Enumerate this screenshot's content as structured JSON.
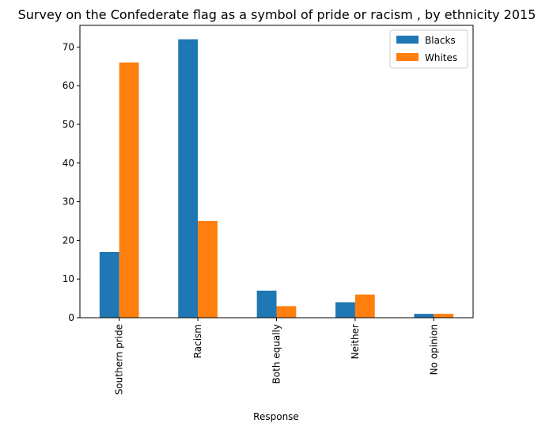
{
  "chart_data": {
    "type": "bar",
    "title": "Survey on the Confederate flag as a symbol of pride or racism , by ethnicity 2015",
    "xlabel": "Response",
    "ylabel": "",
    "categories": [
      "Southern pride",
      "Racism",
      "Both equally",
      "Neither",
      "No opinion"
    ],
    "series": [
      {
        "name": "Blacks",
        "values": [
          17,
          72,
          7,
          4,
          1
        ],
        "color": "#1f77b4"
      },
      {
        "name": "Whites",
        "values": [
          66,
          25,
          3,
          6,
          1
        ],
        "color": "#ff7f0e"
      }
    ],
    "ylim": [
      0,
      75.6
    ],
    "yticks": [
      0,
      10,
      20,
      30,
      40,
      50,
      60,
      70
    ],
    "grid": false,
    "legend_position": "top-right"
  }
}
